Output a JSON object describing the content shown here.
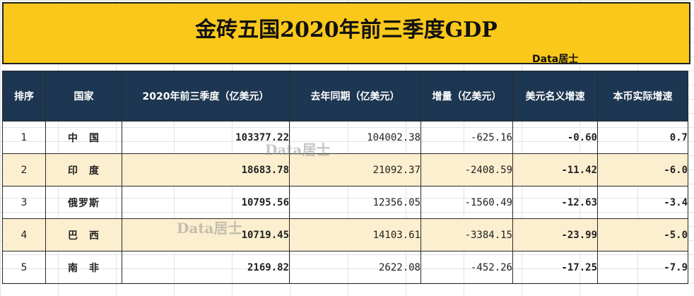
{
  "title": "金砖五国2020年前三季度GDP",
  "credit": "Data居士",
  "watermark": "Data居士",
  "table": {
    "headers": [
      "排序",
      "国家",
      "2020年前三季度（亿美元）",
      "去年同期（亿美元）",
      "增量（亿美元）",
      "美元名义增速",
      "本币实际增速"
    ],
    "rows": [
      {
        "rank": "1",
        "country": "中　国",
        "gdp2020": "103377.22",
        "prev": "104002.38",
        "delta": "-625.16",
        "usd_growth": "-0.60",
        "local_growth": "0.7"
      },
      {
        "rank": "2",
        "country": "印　度",
        "gdp2020": "18683.78",
        "prev": "21092.37",
        "delta": "-2408.59",
        "usd_growth": "-11.42",
        "local_growth": "-6.0"
      },
      {
        "rank": "3",
        "country": "俄罗斯",
        "gdp2020": "10795.56",
        "prev": "12356.05",
        "delta": "-1560.49",
        "usd_growth": "-12.63",
        "local_growth": "-3.4"
      },
      {
        "rank": "4",
        "country": "巴　西",
        "gdp2020": "10719.45",
        "prev": "14103.61",
        "delta": "-3384.15",
        "usd_growth": "-23.99",
        "local_growth": "-5.0"
      },
      {
        "rank": "5",
        "country": "南　非",
        "gdp2020": "2169.82",
        "prev": "2622.08",
        "delta": "-452.26",
        "usd_growth": "-17.25",
        "local_growth": "-7.9"
      }
    ]
  },
  "colors": {
    "title_bg": "#f9c81a",
    "header_bg": "#1d3651",
    "alt_row_bg": "#fcefcf",
    "negative": "#e81010"
  }
}
